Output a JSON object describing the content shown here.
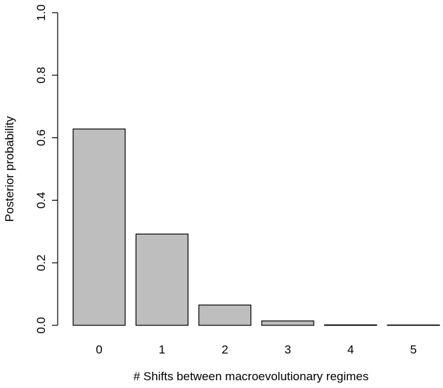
{
  "chart_data": {
    "type": "bar",
    "categories": [
      "0",
      "1",
      "2",
      "3",
      "4",
      "5"
    ],
    "values": [
      0.628,
      0.292,
      0.065,
      0.014,
      0.0015,
      0.0003
    ],
    "title": "",
    "xlabel": "# Shifts between macroevolutionary regimes",
    "ylabel": "Posterior probability",
    "ylim": [
      0,
      1
    ],
    "yticks": [
      "0.0",
      "0.2",
      "0.4",
      "0.6",
      "0.8",
      "1.0"
    ],
    "grid": false,
    "bar_color": "#bebebe",
    "bar_edge_color": "#000000"
  }
}
